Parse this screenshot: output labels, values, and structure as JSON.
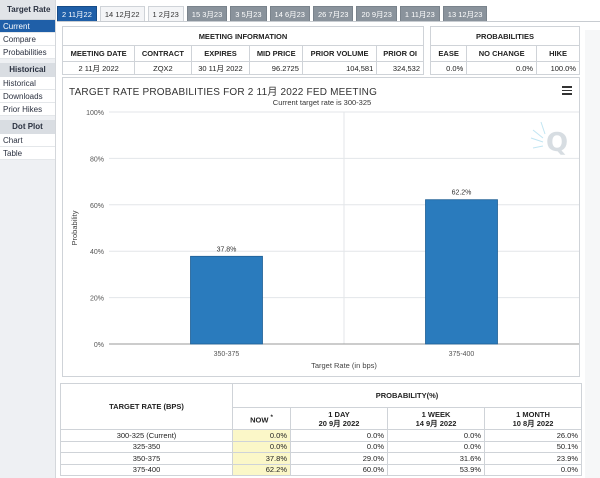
{
  "sidebar": {
    "header": "Target Rate",
    "items_top": [
      "Current",
      "Compare",
      "Probabilities"
    ],
    "group_historical": "Historical",
    "items_hist": [
      "Historical",
      "Downloads",
      "Prior Hikes"
    ],
    "group_dotplot": "Dot Plot",
    "items_dot": [
      "Chart",
      "Table"
    ]
  },
  "tabs": [
    "2 11月22",
    "14 12月22",
    "1 2月23",
    "15 3月23",
    "3 5月23",
    "14 6月23",
    "26 7月23",
    "20 9月23",
    "1 11月23",
    "13 12月23"
  ],
  "meeting_info": {
    "title": "MEETING INFORMATION",
    "columns": [
      "MEETING DATE",
      "CONTRACT",
      "EXPIRES",
      "MID PRICE",
      "PRIOR VOLUME",
      "PRIOR OI"
    ],
    "row": [
      "2 11月 2022",
      "ZQX2",
      "30 11月 2022",
      "96.2725",
      "104,581",
      "324,532"
    ]
  },
  "probabilities": {
    "title": "PROBABILITIES",
    "columns": [
      "EASE",
      "NO CHANGE",
      "HIKE"
    ],
    "row": [
      "0.0%",
      "0.0%",
      "100.0%"
    ]
  },
  "chart": {
    "title": "TARGET RATE PROBABILITIES FOR 2 11月 2022 FED MEETING",
    "subtitle": "Current target rate is 300-325",
    "menu_icon": "hamburger-menu-icon",
    "watermark_icon": "cme-q-logo-icon"
  },
  "chart_data": {
    "type": "bar",
    "categories": [
      "350-375",
      "375-400"
    ],
    "values": [
      37.8,
      62.2
    ],
    "data_labels": [
      "37.8%",
      "62.2%"
    ],
    "xlabel": "Target Rate (in bps)",
    "ylabel": "Probability",
    "ylim": [
      0,
      100
    ],
    "yticks": [
      "0%",
      "20%",
      "40%",
      "60%",
      "80%",
      "100%"
    ],
    "bar_color": "#2a7bbd",
    "grid": true
  },
  "bottom_table": {
    "col_target": "TARGET RATE (BPS)",
    "col_prob": "PROBABILITY(%)",
    "sub_headers": [
      {
        "l1": "NOW",
        "l2": ""
      },
      {
        "l1": "1 DAY",
        "l2": "20 9月 2022"
      },
      {
        "l1": "1 WEEK",
        "l2": "14 9月 2022"
      },
      {
        "l1": "1 MONTH",
        "l2": "10 8月 2022"
      }
    ],
    "now_marker": "*",
    "rows": [
      [
        "300-325 (Current)",
        "0.0%",
        "0.0%",
        "0.0%",
        "26.0%"
      ],
      [
        "325-350",
        "0.0%",
        "0.0%",
        "0.0%",
        "50.1%"
      ],
      [
        "350-375",
        "37.8%",
        "29.0%",
        "31.6%",
        "23.9%"
      ],
      [
        "375-400",
        "62.2%",
        "60.0%",
        "53.9%",
        "0.0%"
      ]
    ]
  }
}
